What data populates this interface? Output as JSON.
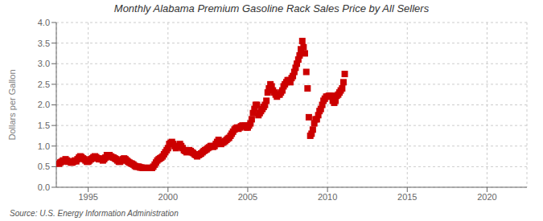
{
  "chart_data": {
    "type": "scatter",
    "title": "Monthly Alabama Premium Gasoline Rack Sales Price by All Sellers",
    "ylabel": "Dollars per Gallon",
    "annotations": [
      "Source: U.S. Energy Information Administration"
    ],
    "color": "#cc0000",
    "marker": "square",
    "grid": true,
    "xlim": [
      1993.0,
      2022.5
    ],
    "ylim": [
      0.0,
      4.0
    ],
    "xticks": [
      1995,
      2000,
      2005,
      2010,
      2015,
      2020
    ],
    "yticks": [
      {
        "value": 0.0,
        "label": "0.0"
      },
      0.5,
      {
        "value": 1.0,
        "label": "1.0"
      },
      1.5,
      {
        "value": 2.0,
        "label": "2.0"
      },
      2.5,
      {
        "value": 3.0,
        "label": "3.0"
      },
      3.5,
      {
        "value": 4.0,
        "label": "4.0"
      }
    ],
    "x": [
      1993.17,
      1993.25,
      1993.33,
      1993.42,
      1993.5,
      1993.58,
      1993.67,
      1993.75,
      1993.83,
      1993.92,
      1994.0,
      1994.08,
      1994.17,
      1994.25,
      1994.33,
      1994.42,
      1994.5,
      1994.58,
      1994.67,
      1994.75,
      1994.83,
      1994.92,
      1995.0,
      1995.08,
      1995.17,
      1995.25,
      1995.33,
      1995.42,
      1995.5,
      1995.58,
      1995.67,
      1995.75,
      1995.83,
      1995.92,
      1996.0,
      1996.08,
      1996.17,
      1996.25,
      1996.33,
      1996.42,
      1996.5,
      1996.58,
      1996.67,
      1996.75,
      1996.83,
      1996.92,
      1997.0,
      1997.08,
      1997.17,
      1997.25,
      1997.33,
      1997.42,
      1997.5,
      1997.58,
      1997.67,
      1997.75,
      1997.83,
      1997.92,
      1998.0,
      1998.08,
      1998.17,
      1998.25,
      1998.33,
      1998.42,
      1998.5,
      1998.58,
      1998.67,
      1998.75,
      1998.83,
      1998.92,
      1999.0,
      1999.08,
      1999.17,
      1999.25,
      1999.33,
      1999.42,
      1999.5,
      1999.58,
      1999.67,
      1999.75,
      1999.83,
      1999.92,
      2000.0,
      2000.08,
      2000.17,
      2000.25,
      2000.33,
      2000.42,
      2000.5,
      2000.58,
      2000.67,
      2000.75,
      2000.83,
      2000.92,
      2001.0,
      2001.08,
      2001.17,
      2001.25,
      2001.33,
      2001.42,
      2001.5,
      2001.58,
      2001.67,
      2001.75,
      2001.83,
      2001.92,
      2002.0,
      2002.08,
      2002.17,
      2002.25,
      2002.33,
      2002.42,
      2002.5,
      2002.58,
      2002.67,
      2002.75,
      2002.83,
      2002.92,
      2003.0,
      2003.08,
      2003.17,
      2003.25,
      2003.33,
      2003.42,
      2003.5,
      2003.58,
      2003.67,
      2003.75,
      2003.83,
      2003.92,
      2004.0,
      2004.08,
      2004.17,
      2004.25,
      2004.33,
      2004.42,
      2004.5,
      2004.58,
      2004.67,
      2004.75,
      2004.83,
      2004.92,
      2005.0,
      2005.08,
      2005.17,
      2005.25,
      2005.33,
      2005.42,
      2005.5,
      2005.58,
      2005.67,
      2005.75,
      2005.83,
      2005.92,
      2006.0,
      2006.08,
      2006.17,
      2006.25,
      2006.33,
      2006.42,
      2006.5,
      2006.58,
      2006.67,
      2006.75,
      2006.83,
      2006.92,
      2007.0,
      2007.08,
      2007.17,
      2007.25,
      2007.33,
      2007.42,
      2007.5,
      2007.58,
      2007.67,
      2007.75,
      2007.83,
      2007.92,
      2008.0,
      2008.08,
      2008.17,
      2008.25,
      2008.33,
      2008.42,
      2008.5,
      2008.58,
      2008.67,
      2008.75,
      2008.83,
      2008.92,
      2009.0,
      2009.08,
      2009.17,
      2009.25,
      2009.33,
      2009.42,
      2009.5,
      2009.58,
      2009.67,
      2009.75,
      2009.83,
      2009.92,
      2010.0,
      2010.08,
      2010.17,
      2010.25,
      2010.33,
      2010.42,
      2010.5,
      2010.58,
      2010.67,
      2010.75,
      2010.83,
      2010.92,
      2011.0,
      2011.08
    ],
    "values": [
      0.57,
      0.6,
      0.62,
      0.65,
      0.63,
      0.68,
      0.65,
      0.62,
      0.63,
      0.6,
      0.6,
      0.62,
      0.65,
      0.63,
      0.68,
      0.72,
      0.75,
      0.73,
      0.7,
      0.68,
      0.65,
      0.62,
      0.62,
      0.65,
      0.68,
      0.7,
      0.73,
      0.75,
      0.73,
      0.7,
      0.68,
      0.7,
      0.68,
      0.65,
      0.68,
      0.72,
      0.78,
      0.75,
      0.78,
      0.75,
      0.73,
      0.72,
      0.7,
      0.68,
      0.65,
      0.62,
      0.62,
      0.65,
      0.68,
      0.7,
      0.68,
      0.65,
      0.62,
      0.6,
      0.58,
      0.57,
      0.55,
      0.52,
      0.5,
      0.5,
      0.5,
      0.48,
      0.48,
      0.47,
      0.47,
      0.47,
      0.47,
      0.47,
      0.47,
      0.47,
      0.47,
      0.5,
      0.55,
      0.6,
      0.65,
      0.68,
      0.7,
      0.72,
      0.75,
      0.8,
      0.85,
      0.9,
      0.95,
      1.05,
      1.08,
      1.1,
      1.05,
      1.0,
      0.95,
      0.98,
      1.0,
      1.05,
      1.0,
      0.95,
      0.9,
      0.88,
      0.85,
      0.88,
      0.9,
      0.88,
      0.85,
      0.83,
      0.8,
      0.78,
      0.75,
      0.78,
      0.8,
      0.82,
      0.85,
      0.88,
      0.9,
      0.92,
      0.95,
      0.97,
      1.0,
      1.0,
      0.98,
      1.0,
      1.05,
      1.1,
      1.15,
      1.1,
      1.05,
      1.08,
      1.1,
      1.12,
      1.15,
      1.18,
      1.2,
      1.25,
      1.3,
      1.35,
      1.4,
      1.43,
      1.45,
      1.42,
      1.45,
      1.48,
      1.5,
      1.48,
      1.5,
      1.45,
      1.45,
      1.5,
      1.55,
      1.65,
      1.8,
      1.9,
      2.0,
      2.0,
      1.75,
      1.8,
      1.85,
      1.9,
      1.95,
      2.0,
      2.1,
      2.3,
      2.4,
      2.5,
      2.45,
      2.35,
      2.3,
      2.25,
      2.2,
      2.25,
      2.25,
      2.3,
      2.35,
      2.45,
      2.5,
      2.55,
      2.6,
      2.6,
      2.55,
      2.65,
      2.7,
      2.8,
      2.9,
      3.0,
      3.1,
      3.2,
      3.35,
      3.55,
      3.4,
      3.25,
      2.8,
      2.4,
      1.7,
      1.25,
      1.3,
      1.4,
      1.55,
      1.65,
      1.65,
      1.75,
      1.85,
      1.9,
      2.0,
      2.1,
      2.15,
      2.2,
      2.2,
      2.22,
      2.22,
      2.22,
      2.1,
      2.05,
      2.1,
      2.22,
      2.25,
      2.3,
      2.35,
      2.4,
      2.55,
      2.75
    ]
  }
}
